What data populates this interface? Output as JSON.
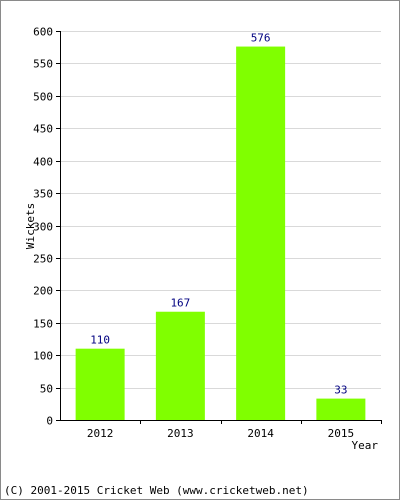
{
  "chart_data": {
    "type": "bar",
    "categories": [
      "2012",
      "2013",
      "2014",
      "2015"
    ],
    "values": [
      110,
      167,
      576,
      33
    ],
    "data_labels": [
      "110",
      "167",
      "576",
      "33"
    ],
    "xlabel": "Year",
    "ylabel": "Wickets",
    "ylim": [
      0,
      600
    ],
    "yticks": [
      "0",
      "50",
      "100",
      "150",
      "200",
      "250",
      "300",
      "350",
      "400",
      "450",
      "500",
      "550",
      "600"
    ],
    "grid": true,
    "bar_color": "#80ff00",
    "label_color": "#000080",
    "grid_color": "#d9d9d9"
  },
  "footer": {
    "copyright": "(C) 2001-2015 Cricket Web (www.cricketweb.net)"
  }
}
